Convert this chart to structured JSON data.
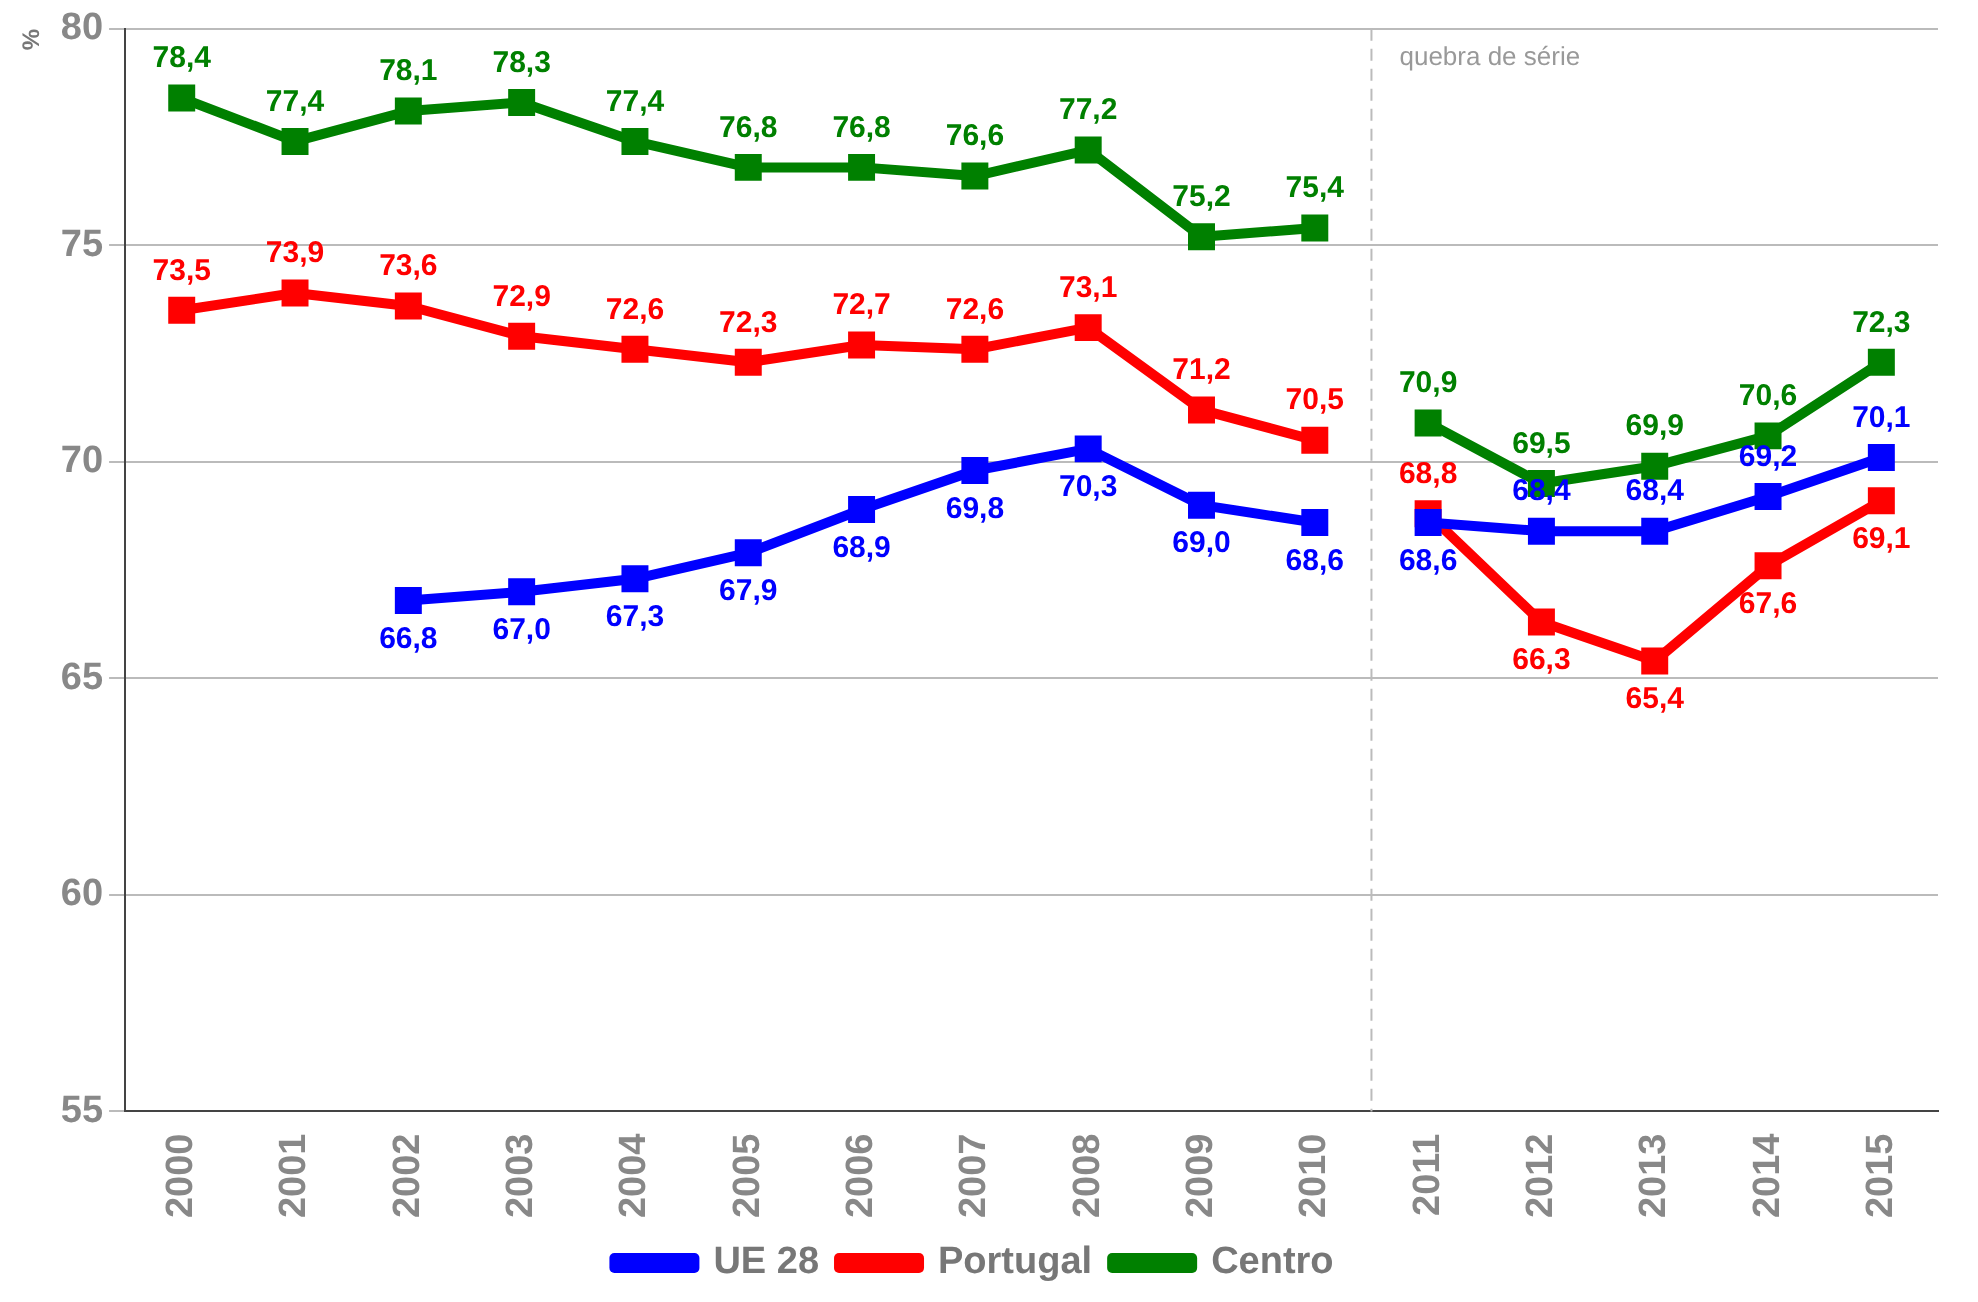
{
  "chart_data": {
    "type": "line",
    "ylabel": "%",
    "categories": [
      "2000",
      "2001",
      "2002",
      "2003",
      "2004",
      "2005",
      "2006",
      "2007",
      "2008",
      "2009",
      "2010",
      "2011",
      "2012",
      "2013",
      "2014",
      "2015"
    ],
    "series": [
      {
        "name": "UE 28",
        "color": "#0000ff",
        "values": [
          null,
          null,
          66.8,
          67.0,
          67.3,
          67.9,
          68.9,
          69.8,
          70.3,
          69.0,
          68.6,
          68.6,
          68.4,
          68.4,
          69.2,
          70.1
        ],
        "value_labels": [
          null,
          null,
          "66,8",
          "67,0",
          "67,3",
          "67,9",
          "68,9",
          "69,8",
          "70,3",
          "69,0",
          "68,6",
          "68,6",
          "68,4",
          "68,4",
          "69,2",
          "70,1"
        ]
      },
      {
        "name": "Portugal",
        "color": "#ff0000",
        "values": [
          73.5,
          73.9,
          73.6,
          72.9,
          72.6,
          72.3,
          72.7,
          72.6,
          73.1,
          71.2,
          70.5,
          68.8,
          66.3,
          65.4,
          67.6,
          69.1
        ],
        "value_labels": [
          "73,5",
          "73,9",
          "73,6",
          "72,9",
          "72,6",
          "72,3",
          "72,7",
          "72,6",
          "73,1",
          "71,2",
          "70,5",
          "68,8",
          "66,3",
          "65,4",
          "67,6",
          "69,1"
        ]
      },
      {
        "name": "Centro",
        "color": "#008000",
        "values": [
          78.4,
          77.4,
          78.1,
          78.3,
          77.4,
          76.8,
          76.8,
          76.6,
          77.2,
          75.2,
          75.4,
          70.9,
          69.5,
          69.9,
          70.6,
          72.3
        ],
        "value_labels": [
          "78,4",
          "77,4",
          "78,1",
          "78,3",
          "77,4",
          "76,8",
          "76,8",
          "76,6",
          "77,2",
          "75,2",
          "75,4",
          "70,9",
          "69,5",
          "69,9",
          "70,6",
          "72,3"
        ]
      }
    ],
    "ylim": [
      55,
      80
    ],
    "yticks": [
      55,
      60,
      65,
      70,
      75,
      80
    ],
    "grid": "y",
    "legend": "bottom",
    "marker": "square",
    "line_style": "solid",
    "ref_lines": [
      {
        "axis": "x",
        "value": "2011",
        "label": "quebra de série",
        "color": "#bbbbbb",
        "line_style": "dashed"
      }
    ]
  }
}
